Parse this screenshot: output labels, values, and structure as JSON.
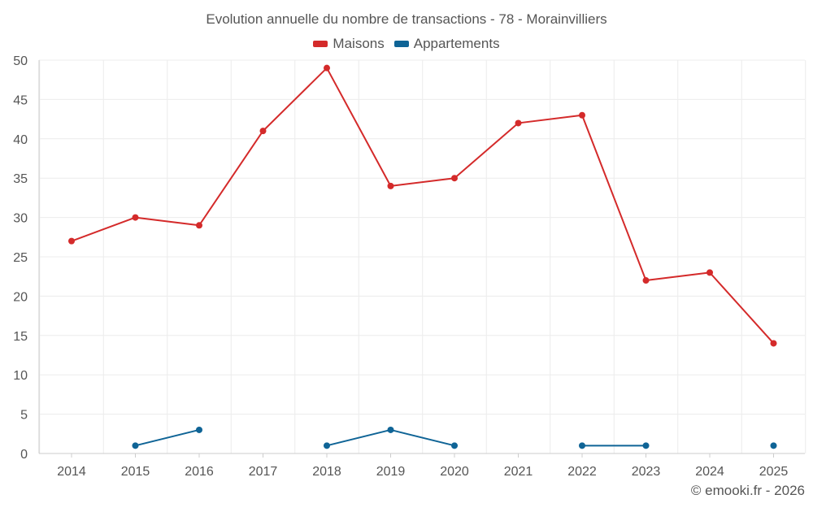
{
  "chart_data": {
    "type": "line",
    "title": "Evolution annuelle du nombre de transactions - 78 - Morainvilliers",
    "categories": [
      "2014",
      "2015",
      "2016",
      "2017",
      "2018",
      "2019",
      "2020",
      "2021",
      "2022",
      "2023",
      "2024",
      "2025"
    ],
    "ylim": [
      0,
      50
    ],
    "yticks": [
      0,
      5,
      10,
      15,
      20,
      25,
      30,
      35,
      40,
      45,
      50
    ],
    "grid": true,
    "legend_position": "top-center",
    "series": [
      {
        "name": "Maisons",
        "color": "#d42a2a",
        "values": [
          27,
          30,
          29,
          41,
          49,
          34,
          35,
          42,
          43,
          22,
          23,
          14
        ]
      },
      {
        "name": "Appartements",
        "color": "#0f6496",
        "values": [
          null,
          1,
          3,
          null,
          1,
          3,
          1,
          null,
          1,
          1,
          null,
          1
        ]
      }
    ]
  },
  "credit": "© emooki.fr - 2026"
}
